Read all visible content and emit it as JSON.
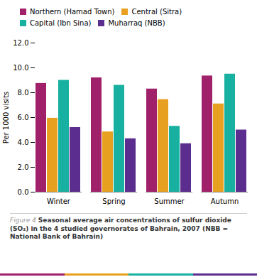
{
  "chart_data": {
    "type": "bar",
    "categories": [
      "Winter",
      "Spring",
      "Summer",
      "Autumn"
    ],
    "series": [
      {
        "name": "Northern (Hamad Town)",
        "color": "#A0206A",
        "values": [
          8.75,
          9.2,
          8.3,
          9.35
        ]
      },
      {
        "name": "Central (Sitra)",
        "color": "#E8A020",
        "values": [
          5.95,
          4.85,
          7.45,
          7.1
        ]
      },
      {
        "name": "Capital (Ibn Sina)",
        "color": "#18B0A0",
        "values": [
          9.0,
          8.6,
          5.3,
          9.5
        ]
      },
      {
        "name": "Muharraq (NBB)",
        "color": "#5B2D8E",
        "values": [
          5.2,
          4.3,
          3.9,
          5.0
        ]
      }
    ],
    "ylabel": "Per 1000 visits",
    "ylim": [
      0,
      12.0
    ],
    "yticks": [
      {
        "value": 0.0,
        "label": "0.0"
      },
      {
        "value": 2.0,
        "label": "2.0"
      },
      {
        "value": 4.0,
        "label": "4.0"
      },
      {
        "value": 6.0,
        "label": "6.0"
      },
      {
        "value": 8.0,
        "label": "8.0"
      },
      {
        "value": 10.0,
        "label": "10.0"
      },
      {
        "value": 12.0,
        "label": "12.0"
      }
    ],
    "caption_prefix": "Figure 4",
    "caption": "Seasonal average air concentrations of sulfur dioxide (SO₂) in the 4 studied governorates of Bahrain, 2007 (NBB = National Bank of Bahrain)",
    "legend": "upper left",
    "grid": false
  }
}
